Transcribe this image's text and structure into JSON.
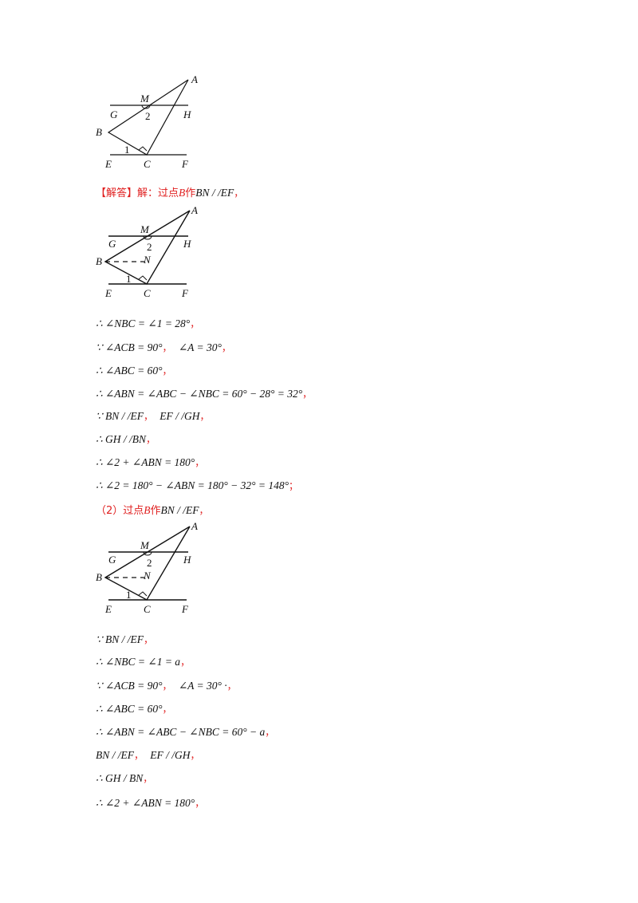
{
  "figure": {
    "labels": {
      "A": "A",
      "M": "M",
      "G": "G",
      "H": "H",
      "B": "B",
      "E": "E",
      "C": "C",
      "F": "F",
      "N": "N",
      "angle1": "1",
      "angle2": "2"
    }
  },
  "answer_heading": {
    "tag": "【解答】",
    "text": "解：过点",
    "point": "B",
    "action": "作",
    "math": "BN / /EF",
    "punc": "，"
  },
  "part1_lines": [
    {
      "math": "∴ ∠NBC = ∠1 = 28°",
      "punc": "，"
    },
    {
      "math": "∵ ∠ACB = 90°",
      "sep": "，",
      "math2": "∠A = 30°",
      "punc": "，"
    },
    {
      "math": "∴ ∠ABC = 60°",
      "punc": "，"
    },
    {
      "math": "∴ ∠ABN = ∠ABC − ∠NBC = 60° − 28° = 32°",
      "punc": "，"
    },
    {
      "math": "∵ BN / /EF",
      "sep": "，",
      "math2": "EF / /GH",
      "punc": "，"
    },
    {
      "math": "∴ GH / /BN",
      "punc": "，"
    },
    {
      "math": "∴ ∠2 + ∠ABN = 180°",
      "punc": "，"
    },
    {
      "math": "∴ ∠2 = 180° − ∠ABN = 180° − 32° = 148°",
      "punc": "；"
    }
  ],
  "part2_heading": {
    "num": "（2）过点",
    "point": "B",
    "action": "作",
    "math": "BN / /EF",
    "punc": "，"
  },
  "part2_lines": [
    {
      "math": "∵ BN / /EF",
      "punc": "，"
    },
    {
      "math": "∴ ∠NBC = ∠1 = a",
      "punc": "，"
    },
    {
      "math": "∵ ∠ACB = 90°",
      "sep": "，",
      "math2": "∠A = 30° ·",
      "punc": "，"
    },
    {
      "math": "∴ ∠ABC = 60°",
      "punc": "，"
    },
    {
      "math": "∴ ∠ABN = ∠ABC − ∠NBC = 60° − a",
      "punc": "，"
    },
    {
      "math": "BN / /EF",
      "sep": "，",
      "math2": "EF / /GH",
      "punc": "，"
    },
    {
      "math": "∴ GH / BN",
      "punc": "，"
    },
    {
      "math": "∴ ∠2 + ∠ABN = 180°",
      "punc": "，"
    }
  ]
}
